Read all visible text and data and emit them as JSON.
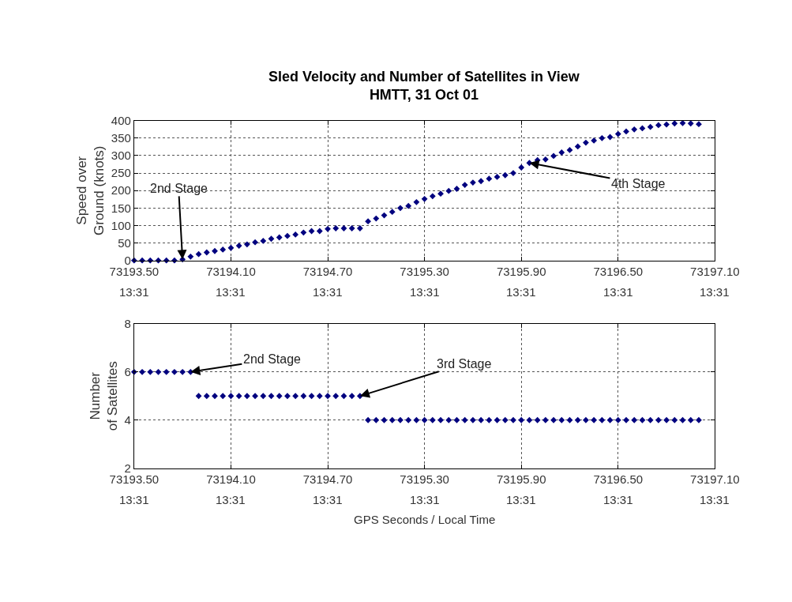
{
  "chart_data": [
    {
      "type": "scatter",
      "title": "Sled Velocity and Number of Satellites in View\nHMTT, 31 Oct 01",
      "ylabel": "Speed over\nGround (knots)",
      "color": "#00007f",
      "marker": "diamond",
      "grid": true,
      "x": [
        73193.5,
        73193.55,
        73193.6,
        73193.65,
        73193.7,
        73193.75,
        73193.8,
        73193.85,
        73193.9,
        73193.95,
        73194.0,
        73194.05,
        73194.1,
        73194.15,
        73194.2,
        73194.25,
        73194.3,
        73194.35,
        73194.4,
        73194.45,
        73194.5,
        73194.55,
        73194.6,
        73194.65,
        73194.7,
        73194.75,
        73194.8,
        73194.85,
        73194.9,
        73194.95,
        73195.0,
        73195.05,
        73195.1,
        73195.15,
        73195.2,
        73195.25,
        73195.3,
        73195.35,
        73195.4,
        73195.45,
        73195.5,
        73195.55,
        73195.6,
        73195.65,
        73195.7,
        73195.75,
        73195.8,
        73195.85,
        73195.9,
        73195.95,
        73196.0,
        73196.05,
        73196.1,
        73196.15,
        73196.2,
        73196.25,
        73196.3,
        73196.35,
        73196.4,
        73196.45,
        73196.5,
        73196.55,
        73196.6,
        73196.65,
        73196.7,
        73196.75,
        73196.8,
        73196.85,
        73196.9,
        73196.95,
        73197.0
      ],
      "values": [
        0,
        0,
        0,
        0,
        0,
        0,
        3,
        11,
        18,
        23,
        27,
        31,
        36,
        42,
        46,
        52,
        56,
        62,
        66,
        70,
        74,
        80,
        84,
        84,
        90,
        92,
        92,
        92,
        92,
        112,
        120,
        129,
        139,
        150,
        156,
        167,
        176,
        184,
        191,
        199,
        205,
        216,
        223,
        227,
        234,
        239,
        244,
        250,
        266,
        279,
        287,
        289,
        299,
        309,
        316,
        326,
        337,
        343,
        350,
        353,
        362,
        369,
        375,
        378,
        382,
        387,
        389,
        392,
        393,
        392,
        390
      ],
      "xlim": [
        73193.5,
        73197.1
      ],
      "xticks": [
        {
          "value": 73193.5,
          "label": "73193.50"
        },
        {
          "value": 73194.1,
          "label": "73194.10"
        },
        {
          "value": 73194.7,
          "label": "73194.70"
        },
        {
          "value": 73195.3,
          "label": "73195.30"
        },
        {
          "value": 73195.9,
          "label": "73195.90"
        },
        {
          "value": 73196.5,
          "label": "73196.50"
        },
        {
          "value": 73197.1,
          "label": "73197.10"
        }
      ],
      "ylim": [
        0,
        400
      ],
      "yticks": [
        0,
        50,
        100,
        150,
        200,
        250,
        300,
        350,
        400
      ],
      "annotations": [
        {
          "text": "2nd Stage",
          "x": 73193.8,
          "y": 3
        },
        {
          "text": "4th Stage",
          "x": 73195.95,
          "y": 279
        },
        "13:31",
        "13:31",
        "13:31",
        "13:31",
        "13:31",
        "13:31",
        "13:31"
      ]
    },
    {
      "type": "scatter",
      "ylabel": "Number\nof Satellites",
      "xlabel": "GPS Seconds / Local Time",
      "color": "#00007f",
      "marker": "diamond",
      "grid": true,
      "x": [
        73193.5,
        73193.55,
        73193.6,
        73193.65,
        73193.7,
        73193.75,
        73193.8,
        73193.85,
        73193.9,
        73193.95,
        73194.0,
        73194.05,
        73194.1,
        73194.15,
        73194.2,
        73194.25,
        73194.3,
        73194.35,
        73194.4,
        73194.45,
        73194.5,
        73194.55,
        73194.6,
        73194.65,
        73194.7,
        73194.75,
        73194.8,
        73194.85,
        73194.9,
        73194.95,
        73195.0,
        73195.05,
        73195.1,
        73195.15,
        73195.2,
        73195.25,
        73195.3,
        73195.35,
        73195.4,
        73195.45,
        73195.5,
        73195.55,
        73195.6,
        73195.65,
        73195.7,
        73195.75,
        73195.8,
        73195.85,
        73195.9,
        73195.95,
        73196.0,
        73196.05,
        73196.1,
        73196.15,
        73196.2,
        73196.25,
        73196.3,
        73196.35,
        73196.4,
        73196.45,
        73196.5,
        73196.55,
        73196.6,
        73196.65,
        73196.7,
        73196.75,
        73196.8,
        73196.85,
        73196.9,
        73196.95,
        73197.0
      ],
      "values": [
        6,
        6,
        6,
        6,
        6,
        6,
        6,
        6,
        5,
        5,
        5,
        5,
        5,
        5,
        5,
        5,
        5,
        5,
        5,
        5,
        5,
        5,
        5,
        5,
        5,
        5,
        5,
        5,
        5,
        4,
        4,
        4,
        4,
        4,
        4,
        4,
        4,
        4,
        4,
        4,
        4,
        4,
        4,
        4,
        4,
        4,
        4,
        4,
        4,
        4,
        4,
        4,
        4,
        4,
        4,
        4,
        4,
        4,
        4,
        4,
        4,
        4,
        4,
        4,
        4,
        4,
        4,
        4,
        4,
        4,
        4
      ],
      "xlim": [
        73193.5,
        73197.1
      ],
      "xticks": [
        {
          "value": 73193.5,
          "label": "73193.50"
        },
        {
          "value": 73194.1,
          "label": "73194.10"
        },
        {
          "value": 73194.7,
          "label": "73194.70"
        },
        {
          "value": 73195.3,
          "label": "73195.30"
        },
        {
          "value": 73195.9,
          "label": "73195.90"
        },
        {
          "value": 73196.5,
          "label": "73196.50"
        },
        {
          "value": 73197.1,
          "label": "73197.10"
        }
      ],
      "ylim": [
        2,
        8
      ],
      "yticks": [
        2,
        4,
        6,
        8
      ],
      "annotations": [
        {
          "text": "2nd Stage",
          "x": 73193.85,
          "y": 6
        },
        {
          "text": "3rd Stage",
          "x": 73194.9,
          "y": 5
        },
        "13:31",
        "13:31",
        "13:31",
        "13:31",
        "13:31",
        "13:31",
        "13:31"
      ]
    }
  ]
}
